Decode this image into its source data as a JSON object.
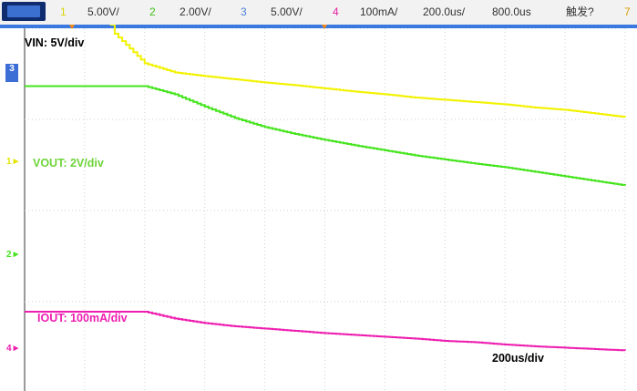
{
  "topbar": {
    "run_label": "",
    "channels": [
      {
        "num": "1",
        "scale": "5.00V/",
        "color": "#e5e500"
      },
      {
        "num": "2",
        "scale": "2.00V/",
        "color": "#42d11a"
      },
      {
        "num": "3",
        "scale": "5.00V/",
        "color": "#4a7fd8"
      },
      {
        "num": "4",
        "scale": "100mA/",
        "color": "#e81fa0"
      }
    ],
    "timebase": "200.0us/",
    "delay": "800.0us",
    "trigger": "触发?",
    "tail_mark": "7"
  },
  "labels": {
    "vin": "VIN: 5V/div",
    "vout": "VOUT: 2V/div",
    "iout": "IOUT: 100mA/div",
    "timescale": "200us/div"
  },
  "channel_markers": {
    "ch3": "3",
    "ch1": "1",
    "ch2": "2",
    "ch4": "4"
  },
  "colors": {
    "vin": "#f2f200",
    "vout": "#44e41c",
    "iout": "#ee1eb0",
    "ch3_marker": "#3c6fd6",
    "grid": "#cfcfcf",
    "divider": "#3a7ae0",
    "trigger_marker": "#f08a1a"
  },
  "waveforms": {
    "x": [
      0,
      0.5,
      1,
      1.5,
      2,
      2.5,
      3,
      3.5,
      4,
      4.5,
      5,
      5.5,
      6,
      6.5,
      7,
      7.5,
      8,
      8.5,
      9,
      9.5,
      10
    ],
    "vin_div": [
      5.4,
      5.4,
      5.4,
      3.8,
      3.15,
      2.95,
      2.87,
      2.8,
      2.73,
      2.67,
      2.6,
      2.53,
      2.47,
      2.4,
      2.35,
      2.3,
      2.25,
      2.18,
      2.13,
      2.05,
      1.97
    ],
    "vout_div": [
      2.65,
      2.65,
      2.65,
      2.65,
      2.65,
      2.47,
      2.2,
      1.95,
      1.75,
      1.6,
      1.47,
      1.35,
      1.24,
      1.13,
      1.04,
      0.95,
      0.87,
      0.77,
      0.67,
      0.57,
      0.47
    ],
    "iout_div": [
      -2.3,
      -2.3,
      -2.3,
      -2.3,
      -2.3,
      -2.45,
      -2.55,
      -2.62,
      -2.67,
      -2.72,
      -2.77,
      -2.81,
      -2.85,
      -2.89,
      -2.94,
      -2.97,
      -3.02,
      -3.06,
      -3.09,
      -3.12,
      -3.15
    ]
  }
}
